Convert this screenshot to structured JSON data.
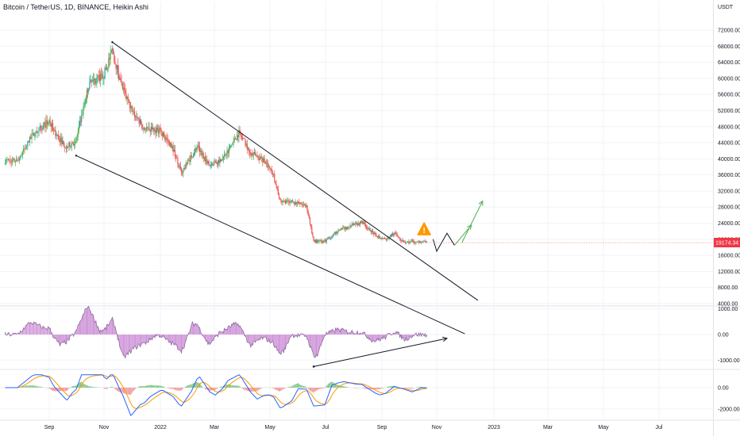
{
  "header": {
    "title": "Bitcoin / TetherUS, 1D, BINANCE, Heikin Ashi"
  },
  "currency": "USDT",
  "colors": {
    "up": "#26a69a",
    "up_bright": "#4caf50",
    "down": "#ef5350",
    "oscillator_fill": "#ce93d8",
    "oscillator_line": "#8e6c9e",
    "macd_line": "#2962ff",
    "signal_line": "#ff9800",
    "trendline": "#131722",
    "projection": "#4caf50",
    "price_tag_bg": "#f23645",
    "warning": "#ff9800",
    "grid": "#f0f3fa",
    "axis_text": "#131722"
  },
  "chart_data": [
    {
      "type": "candlestick",
      "title": "Bitcoin / TetherUS, 1D, BINANCE, Heikin Ashi",
      "y_unit": "USDT",
      "ylim": [
        3000,
        76000
      ],
      "y_ticks": [
        "72000.00",
        "68000.00",
        "64000.00",
        "60000.00",
        "56000.00",
        "52000.00",
        "48000.00",
        "44000.00",
        "40000.00",
        "36000.00",
        "32000.00",
        "28000.00",
        "24000.00",
        "20000.00",
        "16000.00",
        "12000.00",
        "8000.00",
        "4000.00"
      ],
      "current_price": "19174.34",
      "x_ticks": [
        "Sep",
        "Nov",
        "2022",
        "Mar",
        "May",
        "Jul",
        "Sep",
        "Nov",
        "2023",
        "Mar",
        "May",
        "Jul"
      ],
      "series": [
        {
          "name": "close",
          "x": [
            "2021-08-01",
            "2021-08-15",
            "2021-09-01",
            "2021-09-07",
            "2021-09-20",
            "2021-10-01",
            "2021-10-15",
            "2021-11-01",
            "2021-11-10",
            "2021-11-20",
            "2021-12-01",
            "2021-12-15",
            "2022-01-01",
            "2022-01-15",
            "2022-01-24",
            "2022-02-10",
            "2022-02-24",
            "2022-03-10",
            "2022-03-28",
            "2022-04-10",
            "2022-04-25",
            "2022-05-05",
            "2022-05-12",
            "2022-05-25",
            "2022-06-10",
            "2022-06-18",
            "2022-07-01",
            "2022-07-15",
            "2022-07-25",
            "2022-08-10",
            "2022-08-25",
            "2022-09-05",
            "2022-09-15",
            "2022-09-25",
            "2022-10-10",
            "2022-10-20"
          ],
          "y": [
            39500,
            45500,
            49500,
            46500,
            43000,
            44500,
            58500,
            61000,
            67000,
            58000,
            52000,
            47500,
            47000,
            42500,
            36500,
            43000,
            38500,
            40000,
            46500,
            41500,
            39500,
            36000,
            29500,
            29200,
            28500,
            19500,
            19500,
            22000,
            23000,
            24300,
            21000,
            20000,
            21500,
            19300,
            19300,
            19174
          ]
        }
      ],
      "annotations": [
        {
          "type": "trendline",
          "label": "upper wedge",
          "from": [
            "2021-11-10",
            69000
          ],
          "to": [
            "2022-12-15",
            4800
          ]
        },
        {
          "type": "trendline",
          "label": "lower wedge",
          "from": [
            "2021-10-01",
            40800
          ],
          "to": [
            "2022-12-01",
            -3500
          ]
        },
        {
          "type": "projection",
          "path": [
            [
              "2022-10-28",
              20000
            ],
            [
              "2022-11-01",
              17000
            ],
            [
              "2022-11-12",
              21500
            ],
            [
              "2022-11-20",
              18500
            ],
            [
              "2022-12-08",
              23500
            ],
            [
              "2022-12-20",
              29500
            ]
          ]
        },
        {
          "type": "warning-icon",
          "at": [
            "2022-10-18",
            22500
          ]
        }
      ]
    },
    {
      "type": "histogram",
      "label": "oscillator",
      "y_ticks": [
        "1000.00",
        "0.00",
        "-1000.00"
      ],
      "ylim": [
        -1500,
        1500
      ],
      "annotations": [
        {
          "type": "arrow",
          "from": [
            "2022-06-18",
            -1250
          ],
          "to": [
            "2022-11-12",
            -150
          ]
        }
      ]
    },
    {
      "type": "macd",
      "label": "MACD",
      "y_ticks": [
        "0.00",
        "-2000.00"
      ],
      "ylim": [
        -3000,
        1300
      ],
      "series": [
        {
          "name": "macd",
          "color": "#2962ff"
        },
        {
          "name": "signal",
          "color": "#ff9800"
        },
        {
          "name": "histogram"
        }
      ]
    }
  ]
}
